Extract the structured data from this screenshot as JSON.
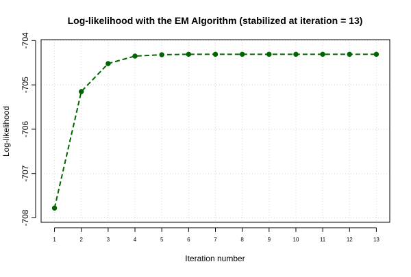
{
  "chart_data": {
    "type": "line",
    "title": "Log-likelihood with the EM Algorithm (stabilized at iteration = 13)",
    "xlabel": "Iteration number",
    "ylabel": "Log-likelihood",
    "x": [
      1,
      2,
      3,
      4,
      5,
      6,
      7,
      8,
      9,
      10,
      11,
      12,
      13
    ],
    "series": [
      {
        "values": [
          -707.78,
          -705.15,
          -704.52,
          -704.35,
          -704.32,
          -704.31,
          -704.31,
          -704.31,
          -704.31,
          -704.31,
          -704.31,
          -704.31,
          -704.31
        ],
        "color": "#006400",
        "line_style": "dashed",
        "marker": "filled-circle"
      }
    ],
    "xlim": [
      0.5,
      13.5
    ],
    "ylim": [
      -708.1,
      -703.98
    ],
    "xticks": [
      1,
      2,
      3,
      4,
      5,
      6,
      7,
      8,
      9,
      10,
      11,
      12,
      13
    ],
    "yticks": [
      -708,
      -707,
      -706,
      -705,
      -704
    ],
    "ytick_labels": [
      "-708",
      "-707",
      "-706",
      "-705",
      "-704"
    ],
    "grid": true,
    "grid_style": "dotted",
    "grid_color": "#d3d3d3",
    "legend": "none"
  }
}
